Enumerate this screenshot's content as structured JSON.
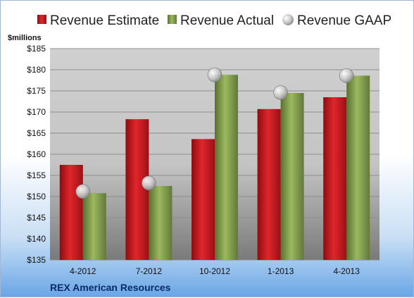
{
  "chart_data": {
    "type": "bar",
    "unit_label": "$millions",
    "categories": [
      "4-2012",
      "7-2012",
      "10-2012",
      "1-2013",
      "4-2013"
    ],
    "series": [
      {
        "name": "Revenue Estimate",
        "kind": "bar",
        "color": "#c8161d",
        "values": [
          157.5,
          168.3,
          163.6,
          170.7,
          173.5
        ]
      },
      {
        "name": "Revenue Actual",
        "kind": "bar",
        "color": "#7f9a48",
        "values": [
          150.8,
          152.5,
          178.8,
          174.5,
          178.6
        ]
      },
      {
        "name": "Revenue GAAP",
        "kind": "marker",
        "color": "#b0b0b0",
        "values": [
          151.2,
          153.2,
          178.8,
          174.6,
          178.6
        ]
      }
    ],
    "ylim": [
      135,
      185
    ],
    "yticks": [
      135,
      140,
      145,
      150,
      155,
      160,
      165,
      170,
      175,
      180,
      185
    ],
    "ytick_labels": [
      "$135",
      "$140",
      "$145",
      "$150",
      "$155",
      "$160",
      "$165",
      "$170",
      "$175",
      "$180",
      "$185"
    ],
    "grid": true,
    "legend_position": "top",
    "footer": "REX American Resources"
  }
}
